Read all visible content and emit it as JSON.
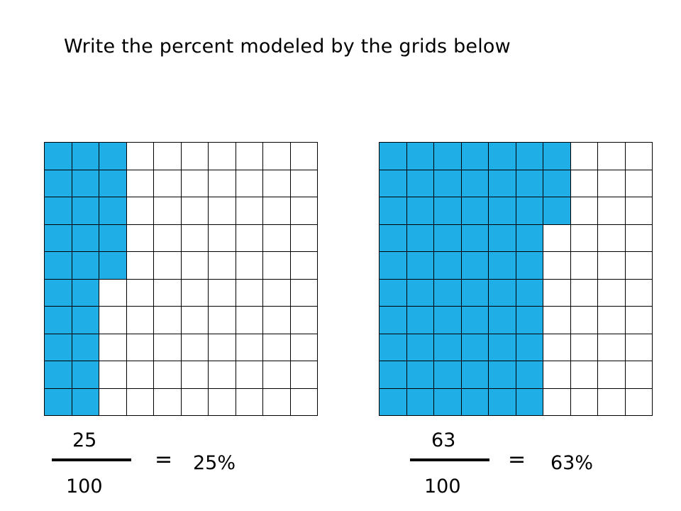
{
  "title": "Write the percent modeled by the grids below",
  "colors": {
    "fill": "#1faee5",
    "empty": "#ffffff",
    "line": "#000000"
  },
  "grids": [
    {
      "id": "left",
      "columns_filled_per_row": [
        3,
        3,
        3,
        3,
        3,
        2,
        2,
        2,
        2,
        2
      ],
      "numerator": "25",
      "denominator": "100",
      "equals": "=",
      "percent": "25%"
    },
    {
      "id": "right",
      "columns_filled_per_row": [
        7,
        7,
        7,
        6,
        6,
        6,
        6,
        6,
        6,
        6
      ],
      "numerator": "63",
      "denominator": "100",
      "equals": "=",
      "percent": "63%"
    }
  ]
}
